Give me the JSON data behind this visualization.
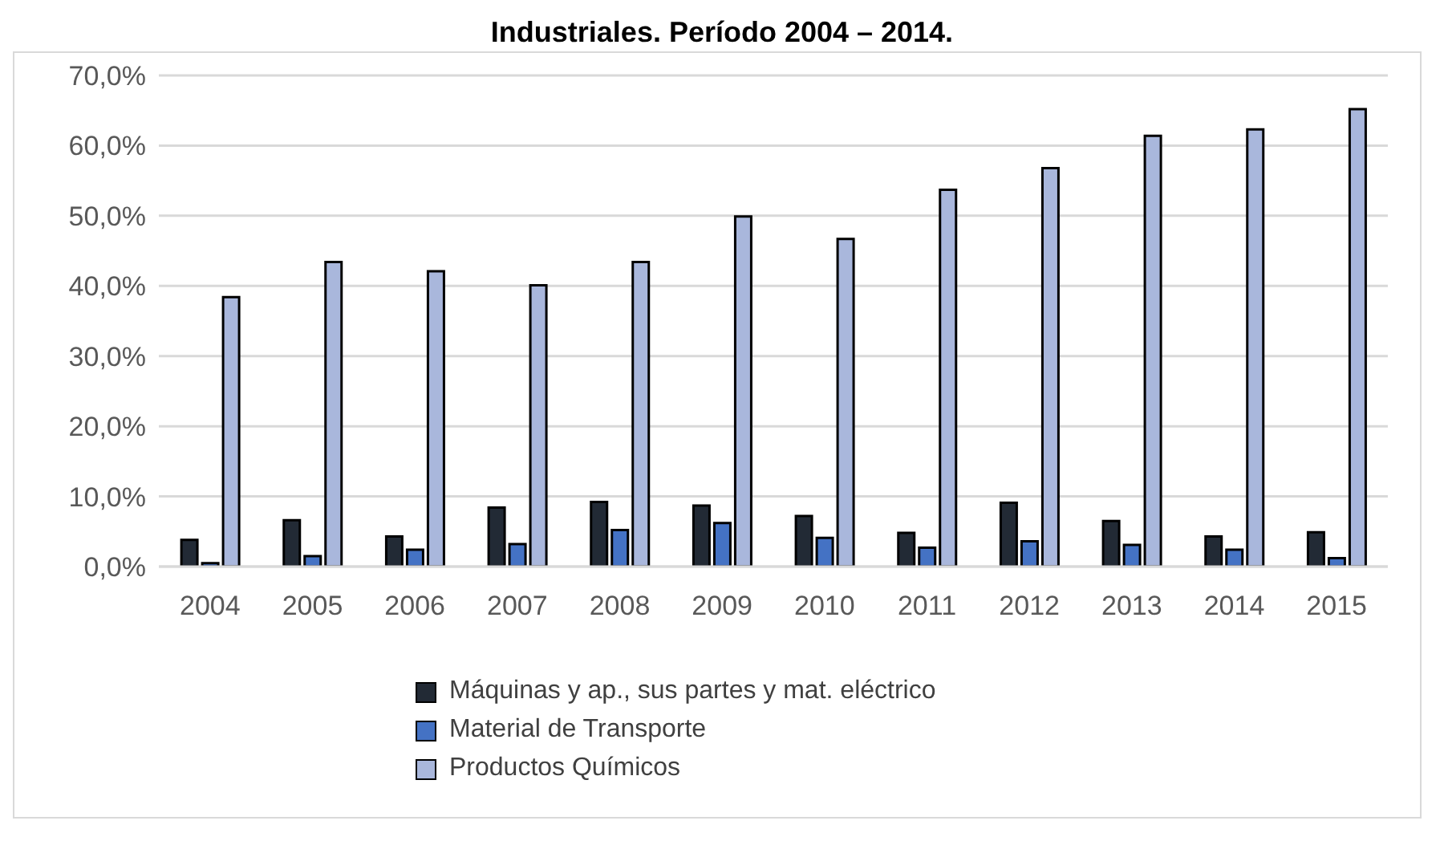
{
  "chart_data": {
    "type": "bar",
    "title": "Industriales. Período 2004 – 2014.",
    "categories": [
      "2004",
      "2005",
      "2006",
      "2007",
      "2008",
      "2009",
      "2010",
      "2011",
      "2012",
      "2013",
      "2014",
      "2015"
    ],
    "series": [
      {
        "name": "Máquinas y ap., sus partes y mat. eléctrico",
        "color": "#222a35",
        "values": [
          3.8,
          6.6,
          4.3,
          8.4,
          9.2,
          8.7,
          7.2,
          4.8,
          9.1,
          6.5,
          4.3,
          4.9
        ]
      },
      {
        "name": "Material de Transporte",
        "color": "#4472c4",
        "values": [
          0.5,
          1.5,
          2.4,
          3.2,
          5.2,
          6.2,
          4.1,
          2.7,
          3.6,
          3.1,
          2.4,
          1.2
        ]
      },
      {
        "name": "Productos Químicos",
        "color": "#a9b7dc",
        "values": [
          38.4,
          43.4,
          42.1,
          40.1,
          43.4,
          49.9,
          46.7,
          53.7,
          56.8,
          61.4,
          62.3,
          65.2
        ]
      }
    ],
    "ylim": [
      0,
      70
    ],
    "yticks": [
      {
        "value": 0,
        "label": "0,0%"
      },
      {
        "value": 10,
        "label": "10,0%"
      },
      {
        "value": 20,
        "label": "20,0%"
      },
      {
        "value": 30,
        "label": "30,0%"
      },
      {
        "value": 40,
        "label": "40,0%"
      },
      {
        "value": 50,
        "label": "50,0%"
      },
      {
        "value": 60,
        "label": "60,0%"
      },
      {
        "value": 70,
        "label": "70,0%"
      }
    ],
    "grid": "y",
    "legend": "bottom"
  }
}
